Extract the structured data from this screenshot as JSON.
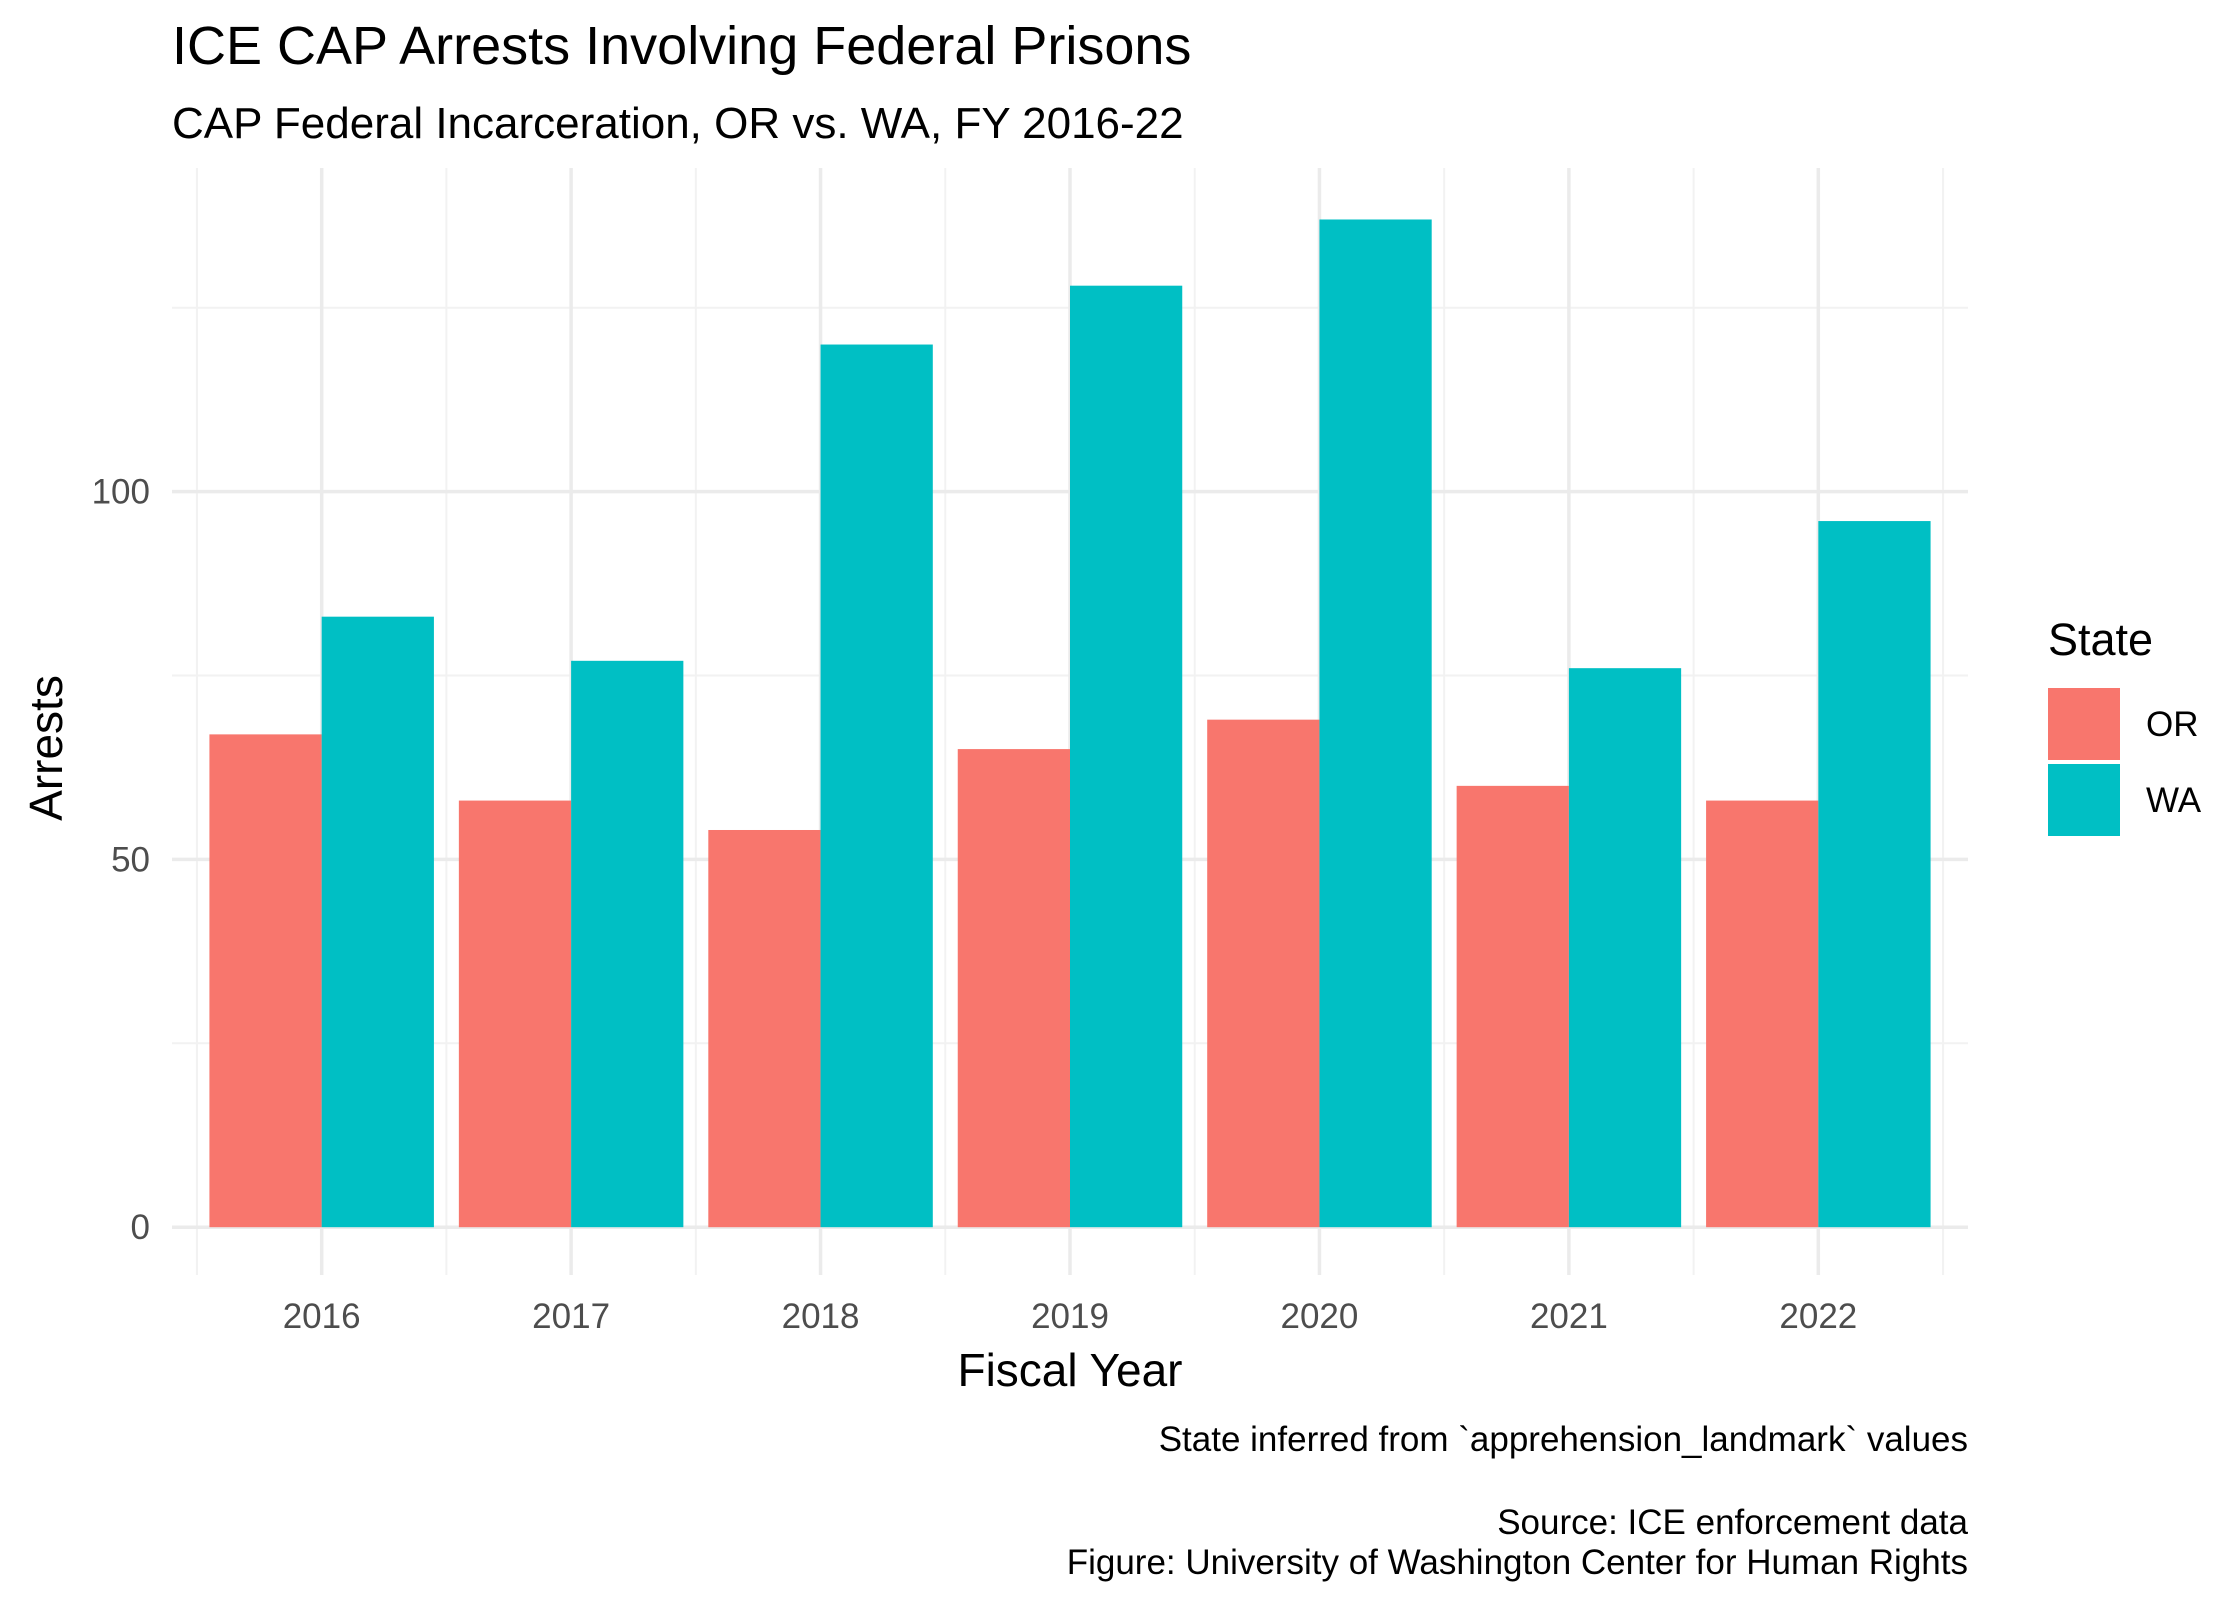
{
  "chart_data": {
    "type": "bar",
    "title": "ICE CAP Arrests Involving Federal Prisons",
    "subtitle": "CAP Federal Incarceration, OR vs. WA, FY 2016-22",
    "xlabel": "Fiscal Year",
    "ylabel": "Arrests",
    "categories": [
      "2016",
      "2017",
      "2018",
      "2019",
      "2020",
      "2021",
      "2022"
    ],
    "series": [
      {
        "name": "OR",
        "color": "#F8766D",
        "values": [
          67,
          58,
          54,
          65,
          69,
          60,
          58
        ]
      },
      {
        "name": "WA",
        "color": "#00BFC4",
        "values": [
          83,
          77,
          120,
          128,
          137,
          76,
          96
        ]
      }
    ],
    "ylim": [
      -6.5,
      144
    ],
    "yticks": [
      0,
      50,
      100
    ],
    "ytick_labels": [
      "0",
      "50",
      "100"
    ],
    "grid": true,
    "legend": {
      "title": "State",
      "position": "right"
    },
    "caption": [
      "State inferred from `apprehension_landmark` values",
      "Source: ICE enforcement data",
      "Figure: University of Washington Center for Human Rights"
    ]
  }
}
